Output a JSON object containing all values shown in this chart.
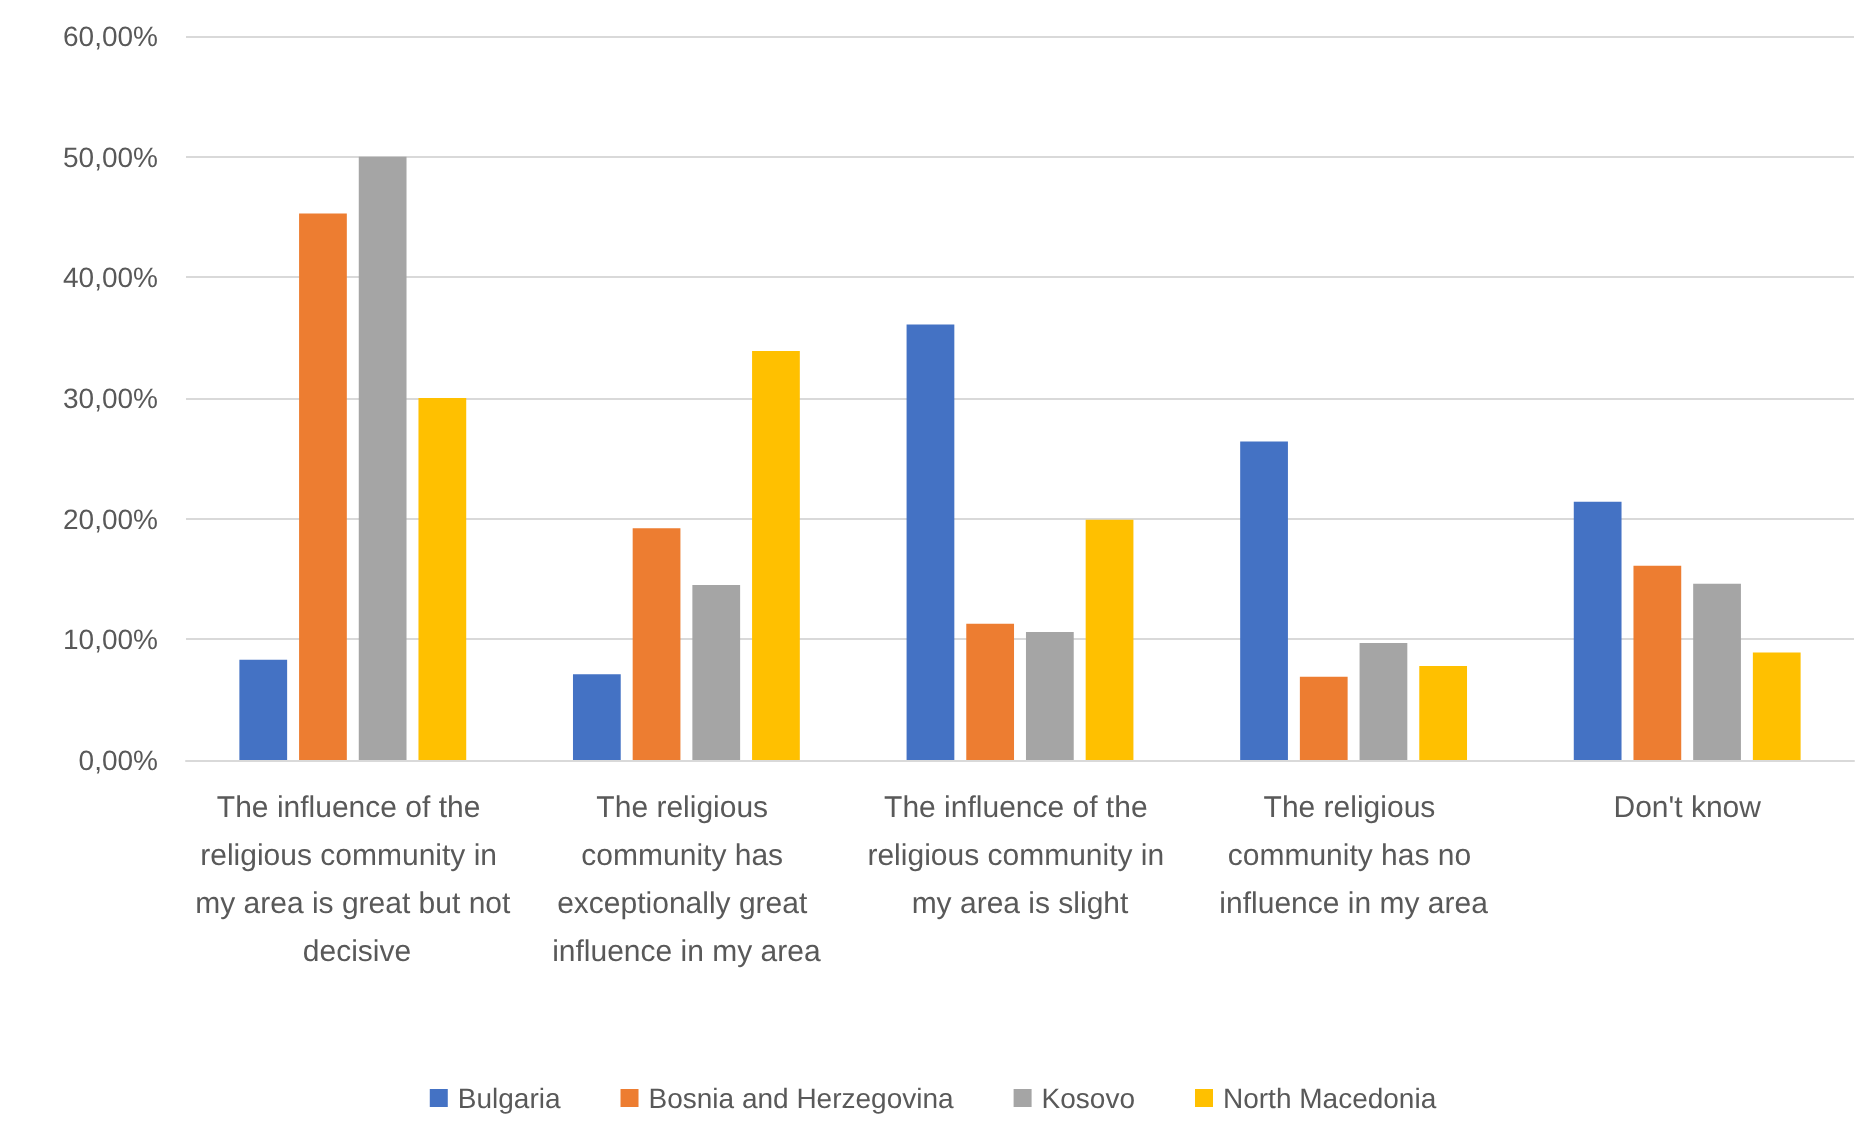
{
  "chart_data": {
    "type": "bar",
    "categories": [
      "The influence of the religious community in my area is great but not decisive",
      "The religious community has exceptionally great influence in my area",
      "The influence of the religious community in my area is slight",
      "The religious community has no influence in my area",
      "Don't know"
    ],
    "series": [
      {
        "name": "Bulgaria",
        "color": "#4472c4",
        "values": [
          8.3,
          7.1,
          36.1,
          26.4,
          21.4
        ]
      },
      {
        "name": "Bosnia and Herzegovina",
        "color": "#ed7d31",
        "values": [
          45.3,
          19.2,
          11.3,
          6.9,
          16.1
        ]
      },
      {
        "name": "Kosovo",
        "color": "#a5a5a5",
        "values": [
          50.0,
          14.5,
          10.6,
          9.7,
          14.6
        ]
      },
      {
        "name": "North Macedonia",
        "color": "#ffc000",
        "values": [
          30.0,
          33.9,
          19.9,
          7.8,
          8.9
        ]
      }
    ],
    "ylim": [
      0,
      60
    ],
    "yticks": [
      {
        "value": 0,
        "label": "0,00%"
      },
      {
        "value": 10,
        "label": "10,00%"
      },
      {
        "value": 20,
        "label": "20,00%"
      },
      {
        "value": 30,
        "label": "30,00%"
      },
      {
        "value": 40,
        "label": "40,00%"
      },
      {
        "value": 50,
        "label": "50,00%"
      },
      {
        "value": 60,
        "label": "60,00%"
      }
    ],
    "grid": "y",
    "legend": "bottom"
  }
}
